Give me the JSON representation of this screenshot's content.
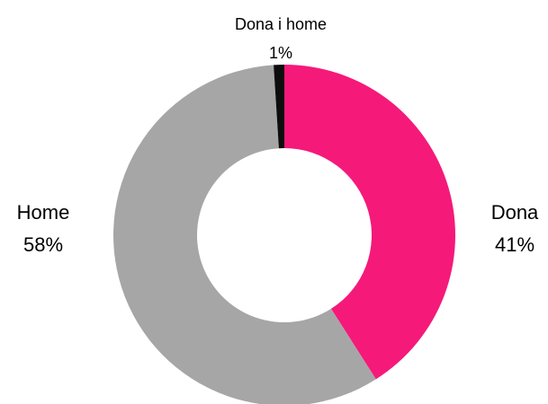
{
  "chart_data": {
    "type": "donut",
    "categories": [
      "Dona",
      "Home",
      "Dona i home"
    ],
    "values": [
      41,
      58,
      1
    ],
    "value_labels": [
      "41%",
      "58%",
      "1%"
    ],
    "colors": [
      "#f5197a",
      "#a6a6a6",
      "#0d0d0d"
    ]
  }
}
